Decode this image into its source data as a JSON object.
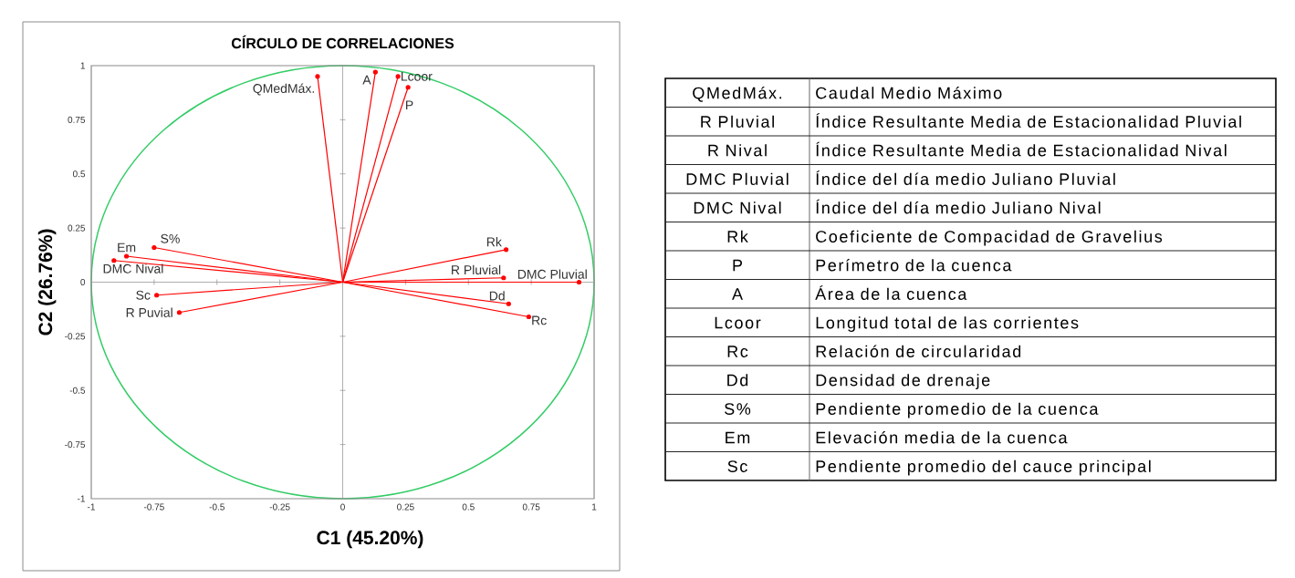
{
  "chart_data": [
    {
      "type": "line",
      "title": "CÍRCULO DE CORRELACIONES",
      "xlabel": "C1 (45.20%)",
      "ylabel": "C2 (26.76%)",
      "xlim": [
        -1,
        1
      ],
      "ylim": [
        -1,
        1
      ],
      "xticks": [
        -1,
        -0.75,
        -0.5,
        -0.25,
        0,
        0.25,
        0.5,
        0.75,
        1
      ],
      "yticks": [
        -1,
        -0.75,
        -0.5,
        -0.25,
        0,
        0.25,
        0.5,
        0.75,
        1
      ],
      "marker": "circle",
      "series": [
        {
          "name": "QMedMáx.",
          "color": "#ff0000",
          "x": [
            0,
            -0.1
          ],
          "values": [
            0,
            0.95
          ]
        },
        {
          "name": "A",
          "color": "#ff0000",
          "x": [
            0,
            0.13
          ],
          "values": [
            0,
            0.97
          ]
        },
        {
          "name": "Lcoor",
          "color": "#ff0000",
          "x": [
            0,
            0.22
          ],
          "values": [
            0,
            0.95
          ]
        },
        {
          "name": "P",
          "color": "#ff0000",
          "x": [
            0,
            0.26
          ],
          "values": [
            0,
            0.9
          ]
        },
        {
          "name": "Rk",
          "color": "#ff0000",
          "x": [
            0,
            0.65
          ],
          "values": [
            0,
            0.15
          ]
        },
        {
          "name": "R Pluvial",
          "color": "#ff0000",
          "x": [
            0,
            0.64
          ],
          "values": [
            0,
            0.02
          ]
        },
        {
          "name": "DMC Pluvial",
          "color": "#ff0000",
          "x": [
            0,
            0.94
          ],
          "values": [
            0,
            0
          ]
        },
        {
          "name": "Dd",
          "color": "#ff0000",
          "x": [
            0,
            0.66
          ],
          "values": [
            0,
            -0.1
          ]
        },
        {
          "name": "Rc",
          "color": "#ff0000",
          "x": [
            0,
            0.74
          ],
          "values": [
            0,
            -0.16
          ]
        },
        {
          "name": "S%",
          "color": "#ff0000",
          "x": [
            0,
            -0.75
          ],
          "values": [
            0,
            0.16
          ]
        },
        {
          "name": "Em",
          "color": "#ff0000",
          "x": [
            0,
            -0.86
          ],
          "values": [
            0,
            0.12
          ]
        },
        {
          "name": "DMC Nival",
          "color": "#ff0000",
          "x": [
            0,
            -0.91
          ],
          "values": [
            0,
            0.1
          ]
        },
        {
          "name": "Sc",
          "color": "#ff0000",
          "x": [
            0,
            -0.74
          ],
          "values": [
            0,
            -0.06
          ]
        },
        {
          "name": "R Puvial",
          "color": "#ff0000",
          "x": [
            0,
            -0.65
          ],
          "values": [
            0,
            -0.14
          ]
        }
      ]
    },
    {
      "type": "other",
      "categories": [
        "QMedMáx.",
        "R Pluvial",
        "R Nival",
        "DMC Pluvial",
        "DMC Nival",
        "Rk",
        "P",
        "A",
        "Lcoor",
        "Rc",
        "Dd",
        "S%",
        "Em",
        "Sc"
      ],
      "annotations": [
        "Caudal Medio Máximo",
        "Índice Resultante Media de Estacionalidad Pluvial",
        "Índice Resultante Media de Estacionalidad Nival",
        "Índice del día medio Juliano Pluvial",
        "Índice del día medio Juliano Nival",
        "Coeficiente de Compacidad de Gravelius",
        "Perímetro de la cuenca",
        "Área de la cuenca",
        "Longitud total de las corrientes",
        "Relación de circularidad",
        "Densidad de drenaje",
        "Pendiente promedio de la cuenca",
        "Elevación media de la cuenca",
        "Pendiente promedio del cauce principal"
      ]
    }
  ]
}
